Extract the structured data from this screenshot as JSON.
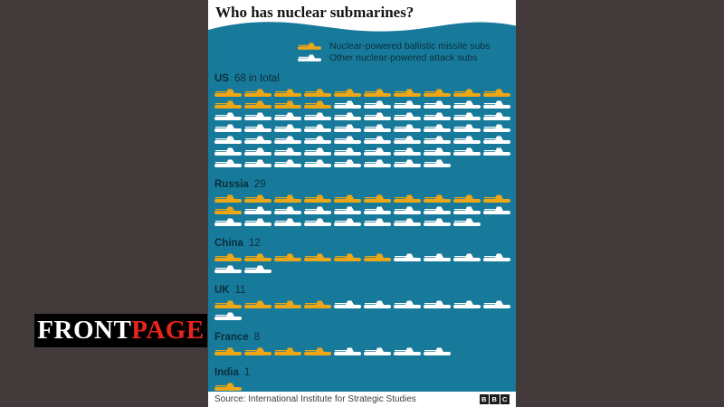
{
  "page": {
    "background_color": "#423a3b",
    "watermark": {
      "text_white": "FRONT",
      "text_red": "PAGE"
    }
  },
  "infographic": {
    "title": "Who has nuclear submarines?",
    "colors": {
      "water": "#187a9b",
      "ballistic": "#eda615",
      "attack": "#ffffff",
      "label_text": "#0a2e3a"
    },
    "legend": [
      {
        "type": "ballistic",
        "label": "Nuclear-powered ballistic missile subs"
      },
      {
        "type": "attack",
        "label": "Other nuclear-powered attack subs"
      }
    ],
    "footer": {
      "source": "Source: International Institute for Strategic Studies",
      "logo_letters": [
        "B",
        "B",
        "C"
      ]
    }
  },
  "chart_data": {
    "type": "pictogram",
    "title": "Who has nuclear submarines?",
    "icons_per_row": 10,
    "categories": [
      "US",
      "Russia",
      "China",
      "UK",
      "France",
      "India"
    ],
    "total_labels": [
      "68 in total",
      "29",
      "12",
      "11",
      "8",
      "1"
    ],
    "totals": [
      68,
      29,
      12,
      11,
      8,
      1
    ],
    "series": [
      {
        "name": "Nuclear-powered ballistic missile subs",
        "color": "#eda615",
        "values": [
          14,
          11,
          6,
          4,
          4,
          1
        ]
      },
      {
        "name": "Other nuclear-powered attack subs",
        "color": "#ffffff",
        "values": [
          54,
          18,
          6,
          7,
          4,
          0
        ]
      }
    ],
    "legend_position": "top",
    "source": "International Institute for Strategic Studies"
  }
}
